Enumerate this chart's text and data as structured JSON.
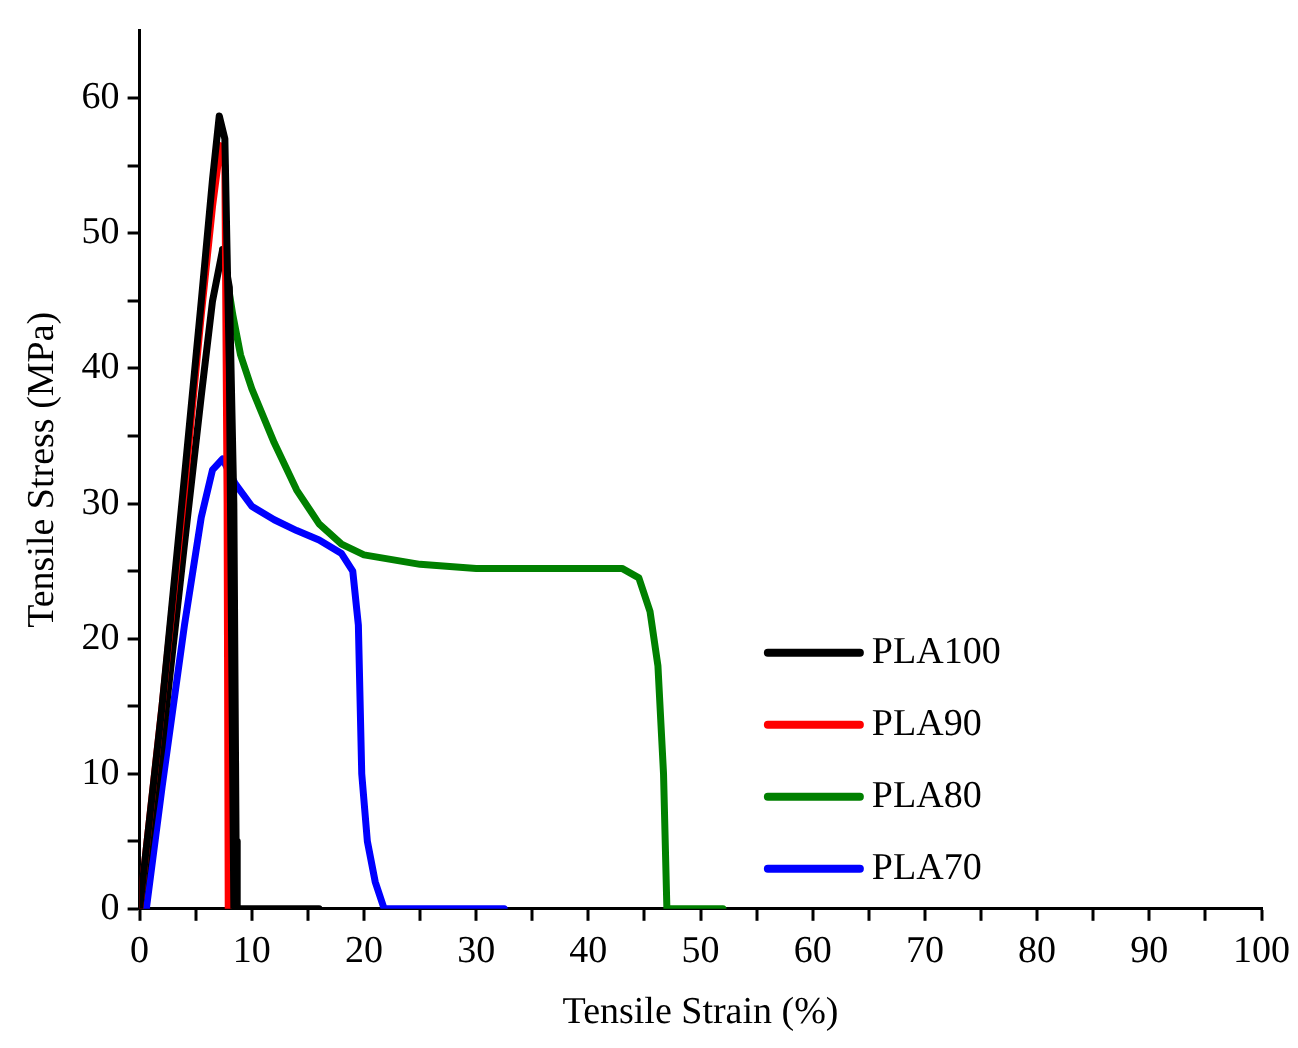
{
  "chart_data": {
    "type": "line",
    "xlabel": "Tensile Strain (%)",
    "ylabel": "Tensile Stress (MPa)",
    "xlim": [
      0,
      100
    ],
    "ylim": [
      0,
      65
    ],
    "xticks": [
      0,
      {
        "value": 5,
        "label": null
      },
      10,
      {
        "value": 15,
        "label": null
      },
      20,
      {
        "value": 25,
        "label": null
      },
      30,
      {
        "value": 35,
        "label": null
      },
      40,
      {
        "value": 45,
        "label": null
      },
      50,
      {
        "value": 55,
        "label": null
      },
      60,
      {
        "value": 65,
        "label": null
      },
      70,
      {
        "value": 75,
        "label": null
      },
      80,
      {
        "value": 85,
        "label": null
      },
      90,
      {
        "value": 95,
        "label": null
      },
      100
    ],
    "yticks": [
      0,
      {
        "value": 5,
        "label": null
      },
      10,
      {
        "value": 15,
        "label": null
      },
      20,
      {
        "value": 25,
        "label": null
      },
      30,
      {
        "value": 35,
        "label": null
      },
      40,
      {
        "value": 45,
        "label": null
      },
      50,
      {
        "value": 55,
        "label": null
      },
      60
    ],
    "grid": false,
    "legend": "bottom right",
    "marker": "none",
    "line_style": "solid",
    "series": [
      {
        "name": "PLA100",
        "color": "#000000",
        "x": [
          0,
          2,
          4,
          5.5,
          6.5,
          7.1,
          7.6,
          8.0,
          8.3,
          8.4
        ],
        "values": [
          0,
          15,
          32,
          45,
          54,
          58.7,
          57,
          40,
          10,
          0
        ]
      },
      {
        "name": "PLA90",
        "color": "#ff0000",
        "x": [
          0,
          2,
          4,
          5.5,
          6.5,
          7.2,
          7.6,
          7.8,
          7.9
        ],
        "values": [
          0,
          15,
          31,
          44,
          52,
          56.5,
          55,
          30,
          0
        ]
      },
      {
        "color": "#000000",
        "x": [
          0,
          2,
          4,
          5.5,
          6.5,
          7.4,
          8,
          8.4,
          8.6,
          8.7,
          16
        ],
        "values": [
          0,
          12,
          27,
          38,
          45,
          48.8,
          46,
          30,
          5,
          0,
          0
        ]
      },
      {
        "name": "PLA80",
        "color": "#008000",
        "x": [
          7.4,
          8.3,
          9,
          10,
          12,
          14,
          16,
          18,
          20,
          25,
          30,
          40,
          43,
          44.5,
          45.5,
          46.2,
          46.7,
          47,
          52
        ],
        "values": [
          48.8,
          44,
          41,
          38.5,
          34.5,
          31,
          28.5,
          27,
          26.2,
          25.5,
          25.2,
          25.2,
          25.2,
          24.5,
          22,
          18,
          10,
          0,
          0
        ]
      },
      {
        "name": "PLA70",
        "color": "#0000ff",
        "x": [
          0.6,
          2,
          4,
          5.5,
          6.5,
          7.4,
          8.5,
          10,
          12,
          14,
          16,
          18,
          19,
          19.5,
          19.8,
          20.3,
          21,
          21.8,
          32.5
        ],
        "values": [
          0,
          9,
          21,
          29,
          32.5,
          33.3,
          31.5,
          29.8,
          28.8,
          28,
          27.3,
          26.3,
          25,
          21,
          10,
          5,
          2,
          0,
          0
        ]
      }
    ]
  }
}
